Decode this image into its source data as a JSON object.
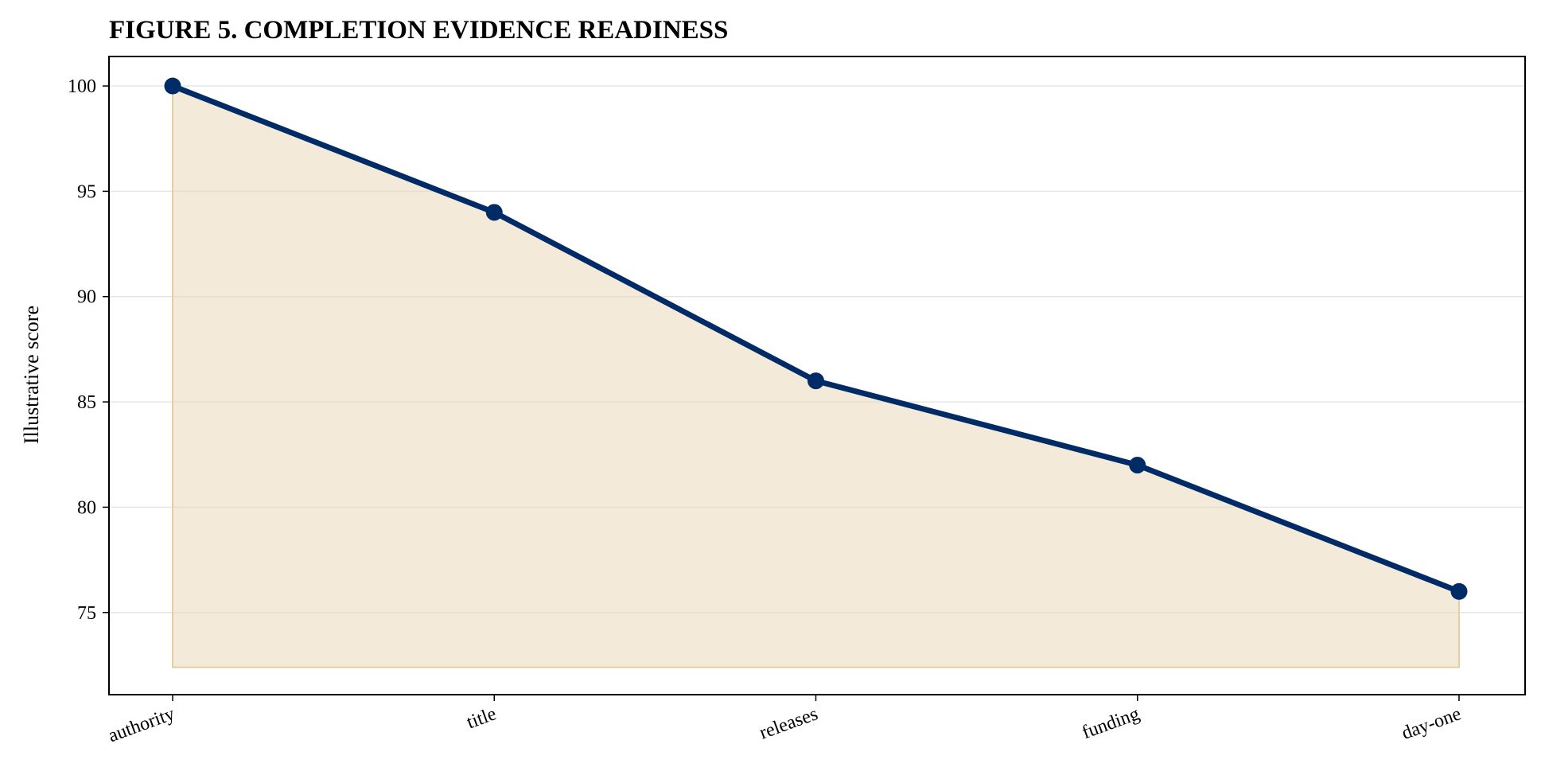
{
  "chart_data": {
    "type": "area",
    "title": "FIGURE 5. COMPLETION EVIDENCE READINESS",
    "xlabel": "",
    "ylabel": "Illustrative score",
    "categories": [
      "authority",
      "title",
      "releases",
      "funding",
      "day-one"
    ],
    "series": [
      {
        "values": [
          100,
          94,
          86,
          82,
          76
        ]
      }
    ],
    "area_baseline": 72.4,
    "ylim": [
      71.1,
      101.4
    ],
    "yticks": [
      75,
      80,
      85,
      90,
      95,
      100
    ],
    "grid": "horizontal",
    "legend": "none",
    "colors": {
      "line": "#002b66",
      "fill": "#e8d6b3",
      "fill_edge": "#e2cfa6",
      "grid": "#e6e6e6",
      "axis": "#000000"
    }
  }
}
